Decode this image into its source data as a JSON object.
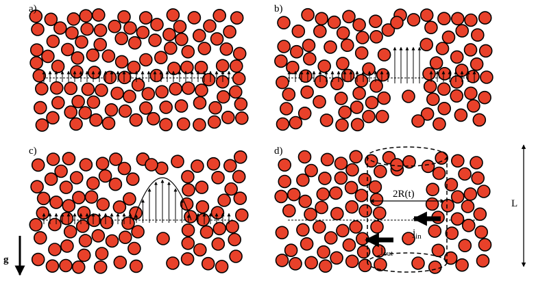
{
  "panels": [
    {
      "label": "a)",
      "flow": "uniform"
    },
    {
      "label": "b)",
      "flow": "channel"
    },
    {
      "label": "c)",
      "flow": "parabolic"
    },
    {
      "label": "d)",
      "flow": "cylinder"
    }
  ],
  "labels": {
    "radius": "2R(t)",
    "length": "L",
    "j_in_main": "j",
    "j_in_sub": "in",
    "j_out_main": "j",
    "j_out_sub": "out",
    "gravity": "g"
  },
  "colors": {
    "particle_fill": "#e8412a",
    "particle_stroke": "#000000",
    "line": "#000000",
    "background": "#ffffff"
  }
}
